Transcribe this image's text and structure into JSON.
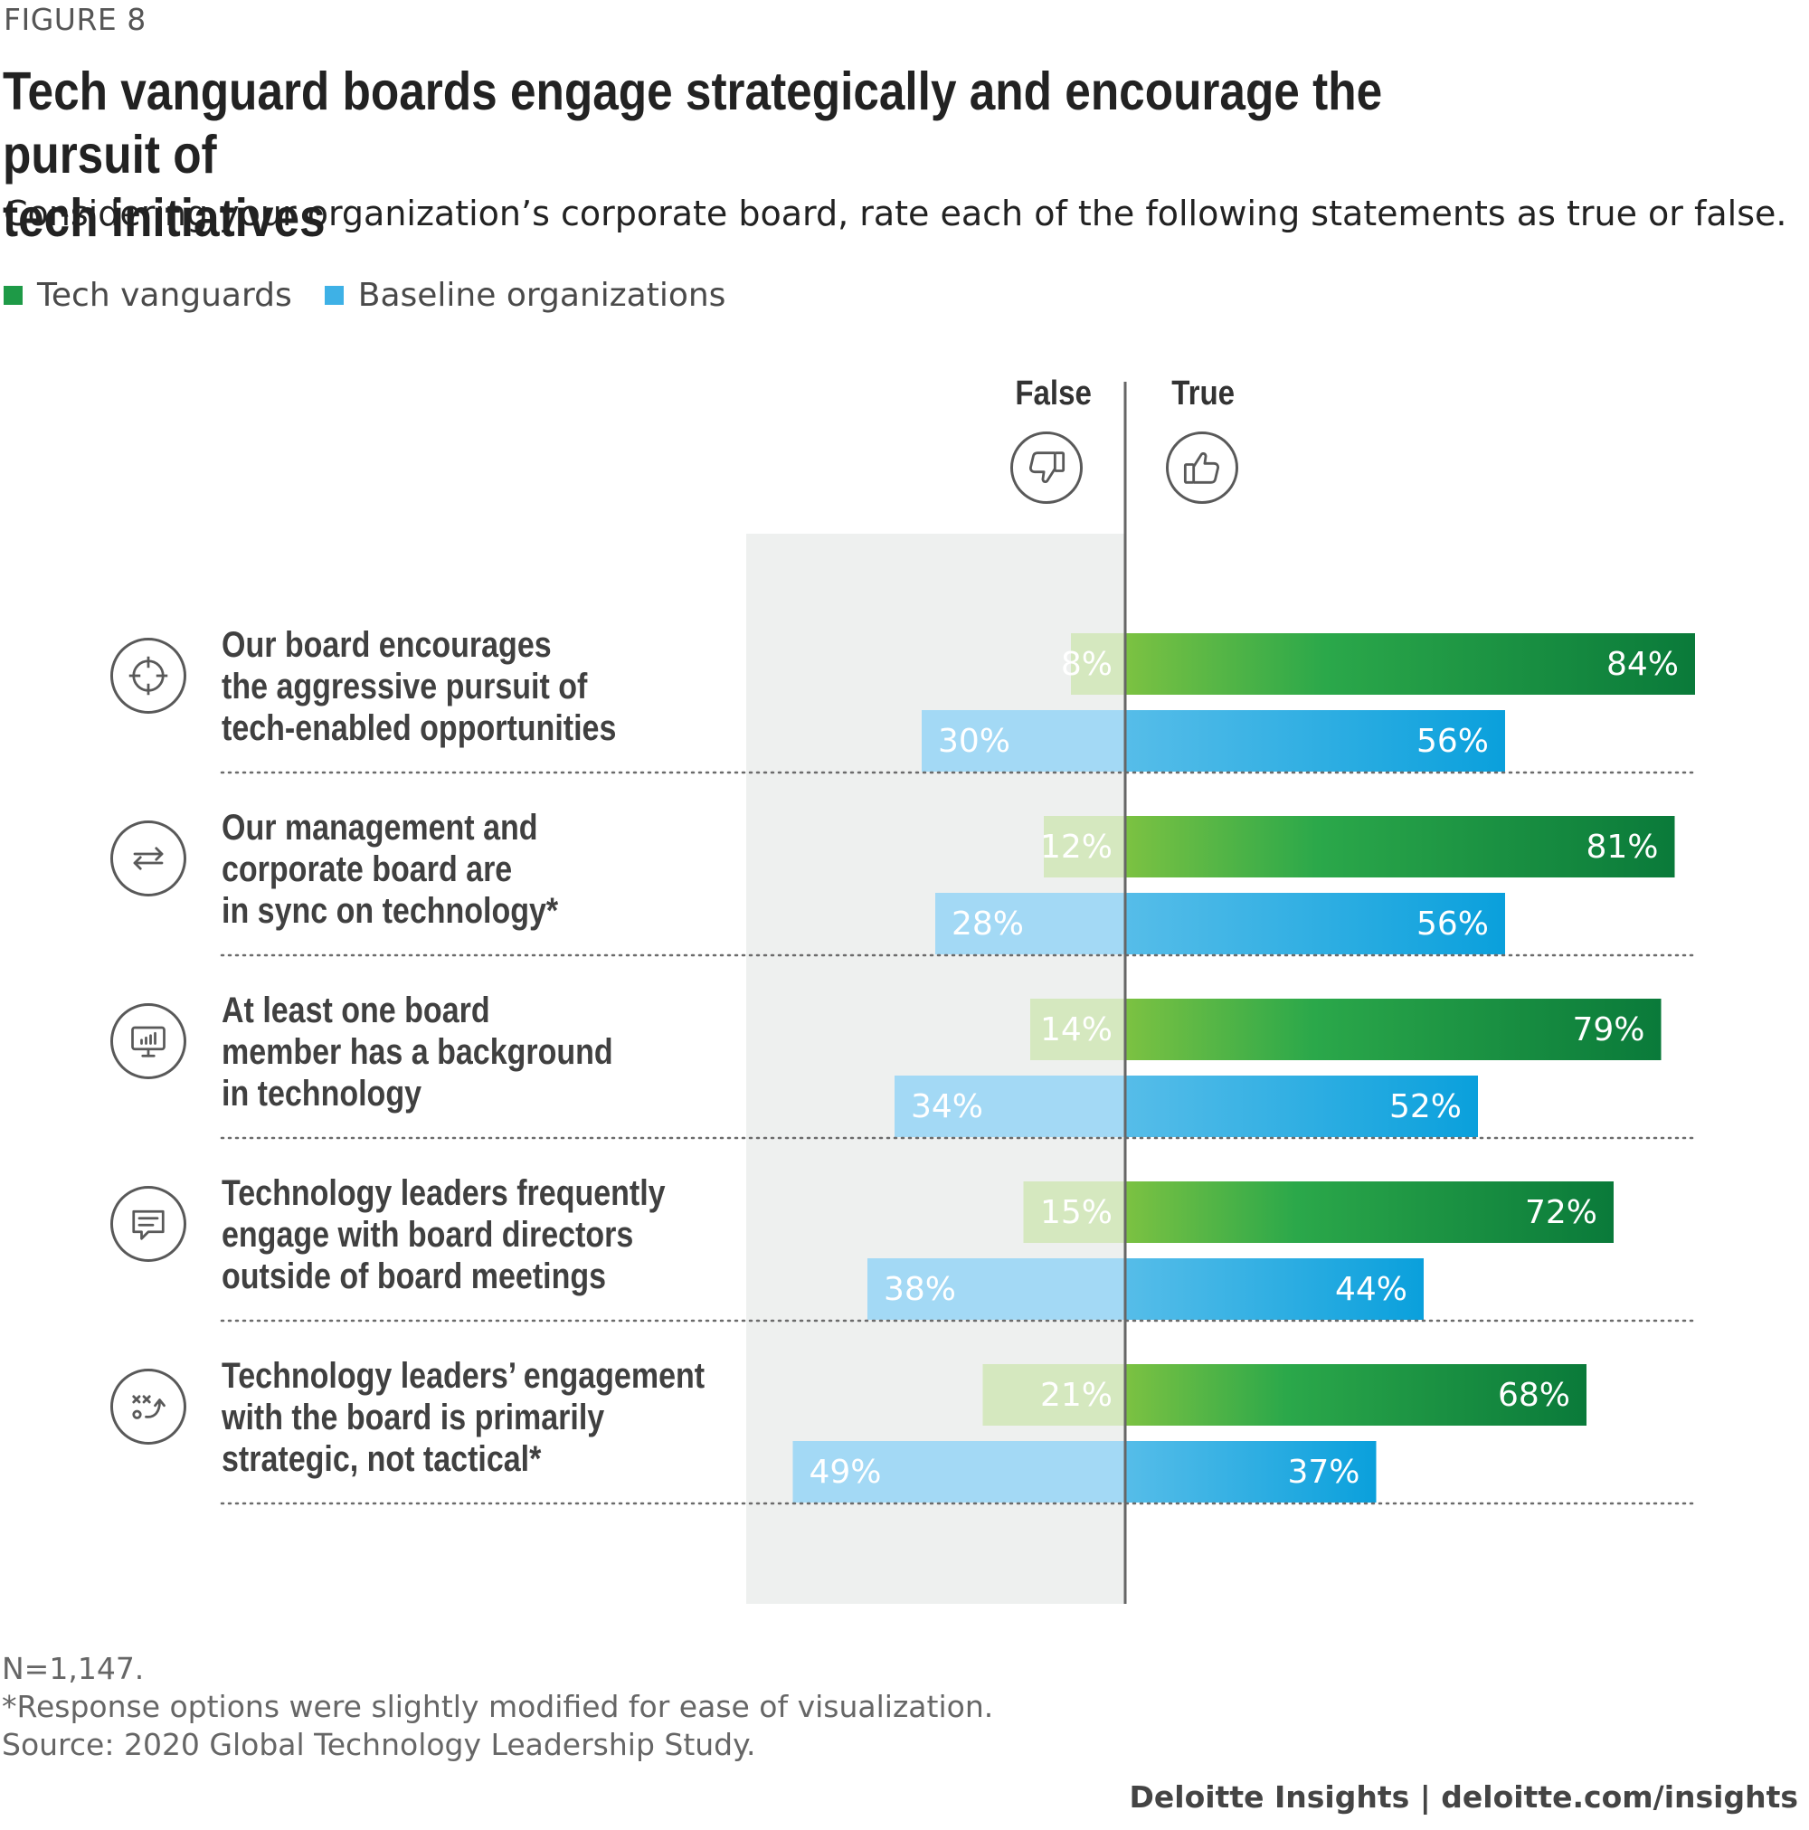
{
  "figure_label": "FIGURE 8",
  "title_line1": "Tech vanguard boards engage strategically and encourage the pursuit of",
  "title_line2": "tech initiatives",
  "subtitle": "Considering your organization’s corporate board, rate each of the following statements as true or false.",
  "legend": [
    {
      "label": "Tech vanguards",
      "color": "#1e9a47"
    },
    {
      "label": "Baseline organizations",
      "color": "#3eb1e6"
    }
  ],
  "side_labels": {
    "false": "False",
    "true": "True"
  },
  "icons": {
    "false": "thumbs-down-icon",
    "true": "thumbs-up-icon"
  },
  "chart_data": {
    "type": "bar",
    "orientation": "diverging-horizontal",
    "unit": "%",
    "categories": [
      "Our board encourages the aggressive pursuit of tech-enabled opportunities",
      "Our management and corporate board are in sync on technology*",
      "At least one board member has a background in technology",
      "Technology leaders frequently engage with board directors outside of board meetings",
      "Technology leaders’ engagement with the board is primarily strategic, not tactical*"
    ],
    "series": [
      {
        "name": "Tech vanguards",
        "true": [
          84,
          81,
          79,
          72,
          68
        ],
        "false": [
          8,
          12,
          14,
          15,
          21
        ]
      },
      {
        "name": "Baseline organizations",
        "true": [
          56,
          56,
          52,
          44,
          37
        ],
        "false": [
          30,
          28,
          34,
          38,
          49
        ]
      }
    ],
    "colors": {
      "vanguard_true_start": "#7cc242",
      "vanguard_true_mid": "#2ba84a",
      "vanguard_true_end": "#0a7a3a",
      "vanguard_false": "#d5e8bf",
      "baseline_true_start": "#56bde9",
      "baseline_true_end": "#0aa0dc",
      "baseline_false": "#a3d9f5",
      "false_zone": "#eef0ef"
    }
  },
  "rows": [
    {
      "lines": [
        "Our board encourages",
        "the aggressive pursuit of",
        "tech-enabled opportunities"
      ],
      "icon": "target-icon"
    },
    {
      "lines": [
        "Our management and",
        "corporate board are",
        "in sync on technology*"
      ],
      "icon": "sync-arrows-icon"
    },
    {
      "lines": [
        "At least one board",
        "member has a background",
        "in technology"
      ],
      "icon": "monitor-chart-icon"
    },
    {
      "lines": [
        "Technology leaders frequently",
        "engage with board directors",
        "outside of board meetings"
      ],
      "icon": "chat-bubble-icon"
    },
    {
      "lines": [
        "Technology leaders’ engagement",
        "with the board is primarily",
        "strategic, not tactical*"
      ],
      "icon": "strategy-play-icon"
    }
  ],
  "footnotes": [
    "N=1,147.",
    "*Response options were slightly modified for ease of visualization.",
    "Source: 2020 Global Technology Leadership Study."
  ],
  "credit": "Deloitte Insights | deloitte.com/insights"
}
